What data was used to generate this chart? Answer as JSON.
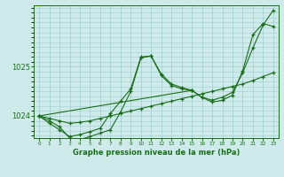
{
  "title": "Graphe pression niveau de la mer (hPa)",
  "bg_color": "#ceeaea",
  "grid_color": "#9ecece",
  "line_color": "#1a6e1a",
  "xlim": [
    -0.5,
    23.5
  ],
  "ylim": [
    1023.55,
    1026.25
  ],
  "yticks": [
    1024,
    1025
  ],
  "series": [
    {
      "x": [
        0,
        1,
        2,
        3,
        4,
        5,
        6,
        7,
        8,
        9,
        10,
        11,
        12,
        13,
        14,
        15,
        16,
        17,
        18,
        19,
        20,
        21,
        22,
        23
      ],
      "y": [
        1024.0,
        1023.85,
        1023.72,
        1023.58,
        1023.62,
        1023.68,
        1023.75,
        1024.05,
        1024.3,
        1024.55,
        1025.2,
        1025.22,
        1024.82,
        1024.62,
        1024.55,
        1024.52,
        1024.38,
        1024.28,
        1024.32,
        1024.42,
        1024.92,
        1025.65,
        1025.88,
        1025.82
      ]
    },
    {
      "x": [
        0,
        1,
        2,
        3,
        4,
        5,
        6,
        7,
        8,
        9,
        10,
        11,
        12,
        13,
        14,
        15,
        16,
        17,
        18,
        19,
        20,
        21,
        22,
        23
      ],
      "y": [
        1024.0,
        1023.95,
        1023.9,
        1023.85,
        1023.87,
        1023.9,
        1023.95,
        1024.0,
        1024.05,
        1024.1,
        1024.15,
        1024.2,
        1024.25,
        1024.3,
        1024.35,
        1024.4,
        1024.45,
        1024.5,
        1024.55,
        1024.6,
        1024.65,
        1024.72,
        1024.8,
        1024.88
      ]
    },
    {
      "x": [
        0,
        1,
        2,
        3,
        4,
        5,
        6,
        7,
        8,
        9,
        10,
        11,
        12,
        13,
        14,
        15
      ],
      "y": [
        1024.0,
        1023.9,
        1023.78,
        1023.55,
        1023.52,
        1023.58,
        1023.65,
        1023.72,
        1024.08,
        1024.5,
        1025.18,
        1025.22,
        1024.85,
        1024.65,
        1024.58,
        1024.52
      ]
    },
    {
      "x": [
        0,
        15,
        16,
        17,
        18,
        19,
        20,
        21,
        22,
        23
      ],
      "y": [
        1024.0,
        1024.52,
        1024.38,
        1024.32,
        1024.38,
        1024.48,
        1024.88,
        1025.38,
        1025.85,
        1026.15
      ]
    }
  ]
}
